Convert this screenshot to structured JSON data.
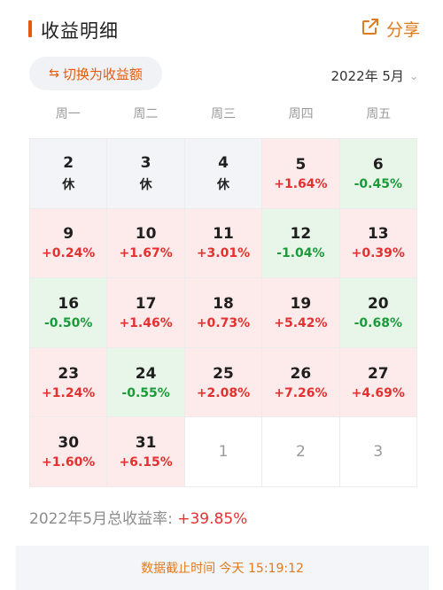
{
  "header": {
    "title": "收益明细",
    "share_label": "分享"
  },
  "controls": {
    "switch_label": "切换为收益额",
    "month": "2022年 5月"
  },
  "weekdays": [
    "周一",
    "周二",
    "周三",
    "周四",
    "周五"
  ],
  "calendar": {
    "days": [
      {
        "day": "2",
        "value": "休",
        "status": "rest"
      },
      {
        "day": "3",
        "value": "休",
        "status": "rest"
      },
      {
        "day": "4",
        "value": "休",
        "status": "rest"
      },
      {
        "day": "5",
        "value": "+1.64%",
        "status": "up"
      },
      {
        "day": "6",
        "value": "-0.45%",
        "status": "down"
      },
      {
        "day": "9",
        "value": "+0.24%",
        "status": "up"
      },
      {
        "day": "10",
        "value": "+1.67%",
        "status": "up"
      },
      {
        "day": "11",
        "value": "+3.01%",
        "status": "up"
      },
      {
        "day": "12",
        "value": "-1.04%",
        "status": "down"
      },
      {
        "day": "13",
        "value": "+0.39%",
        "status": "up"
      },
      {
        "day": "16",
        "value": "-0.50%",
        "status": "down"
      },
      {
        "day": "17",
        "value": "+1.46%",
        "status": "up"
      },
      {
        "day": "18",
        "value": "+0.73%",
        "status": "up"
      },
      {
        "day": "19",
        "value": "+5.42%",
        "status": "up"
      },
      {
        "day": "20",
        "value": "-0.68%",
        "status": "down"
      },
      {
        "day": "23",
        "value": "+1.24%",
        "status": "up"
      },
      {
        "day": "24",
        "value": "-0.55%",
        "status": "down"
      },
      {
        "day": "25",
        "value": "+2.08%",
        "status": "up"
      },
      {
        "day": "26",
        "value": "+7.26%",
        "status": "up"
      },
      {
        "day": "27",
        "value": "+4.69%",
        "status": "up"
      },
      {
        "day": "30",
        "value": "+1.60%",
        "status": "up"
      },
      {
        "day": "31",
        "value": "+6.15%",
        "status": "up"
      },
      {
        "day": "1",
        "value": "",
        "status": "future"
      },
      {
        "day": "2",
        "value": "",
        "status": "future"
      },
      {
        "day": "3",
        "value": "",
        "status": "future"
      }
    ]
  },
  "summary": {
    "label": "2022年5月总收益率: ",
    "rate": "+39.85%"
  },
  "footer": {
    "text": "数据截止时间 今天 15:19:12"
  },
  "colors": {
    "accent": "#e8590c",
    "up": "#e5302f",
    "down": "#1b9a3a"
  },
  "icons": {
    "share": "share-icon",
    "switch": "swap-icon",
    "dropdown": "chevron-down-icon"
  }
}
